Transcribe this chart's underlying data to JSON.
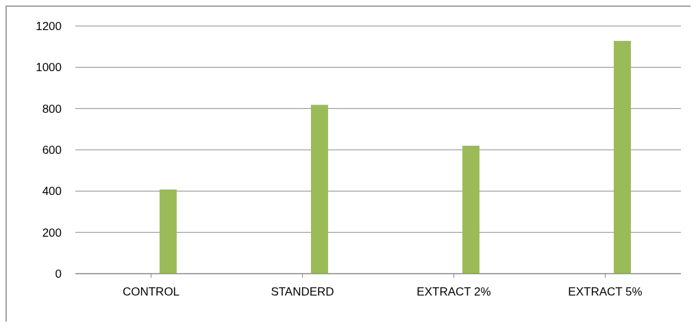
{
  "chart_data": {
    "type": "bar",
    "categories": [
      "CONTROL",
      "STANDERD",
      "EXTRACT 2%",
      "EXTRACT 5%"
    ],
    "series": [
      {
        "values": [
          null,
          null,
          null,
          null
        ]
      },
      {
        "values": [
          null,
          null,
          null,
          null
        ]
      },
      {
        "color": "#9bbb59",
        "values": [
          408,
          818,
          620,
          1128
        ]
      }
    ],
    "ylim": [
      0,
      1200
    ],
    "yticks": [
      0,
      200,
      400,
      600,
      800,
      1000,
      1200
    ],
    "grid": "y"
  }
}
